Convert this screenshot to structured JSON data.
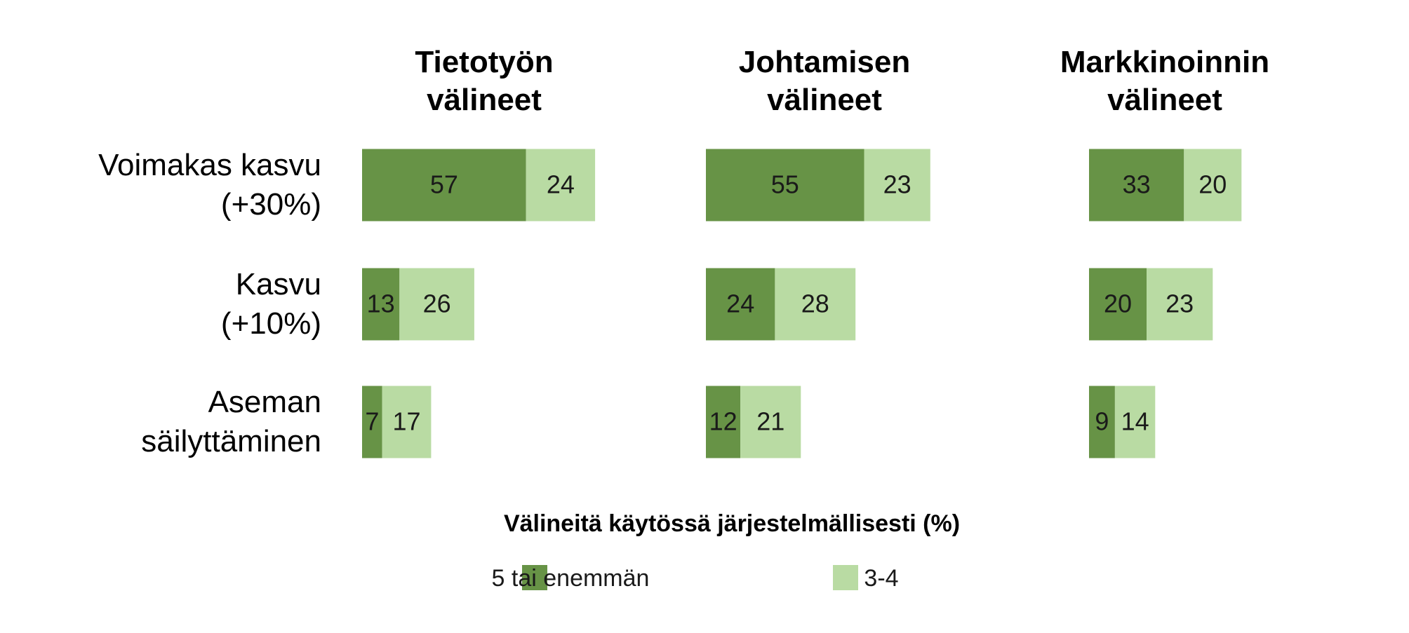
{
  "chart_data": {
    "type": "bar",
    "orientation": "horizontal",
    "stacked": true,
    "categories": [
      "Voimakas kasvu\n(+30%)",
      "Kasvu\n(+10%)",
      "Aseman\nsäilyttäminen"
    ],
    "legend_title": "Välineitä käytössä järjestelmällisesti (%)",
    "series": [
      {
        "name": "5 tai enemmän",
        "color": "#679346"
      },
      {
        "name": "3-4",
        "color": "#b9dba3"
      }
    ],
    "panels": [
      {
        "title": "Tietotyön\nvälineet",
        "values": [
          [
            57,
            13,
            7
          ],
          [
            24,
            26,
            17
          ]
        ]
      },
      {
        "title": "Johtamisen\nvälineet",
        "values": [
          [
            55,
            24,
            12
          ],
          [
            23,
            28,
            21
          ]
        ]
      },
      {
        "title": "Markkinoinnin\nvälineet",
        "values": [
          [
            33,
            20,
            9
          ],
          [
            20,
            23,
            14
          ]
        ]
      }
    ]
  }
}
